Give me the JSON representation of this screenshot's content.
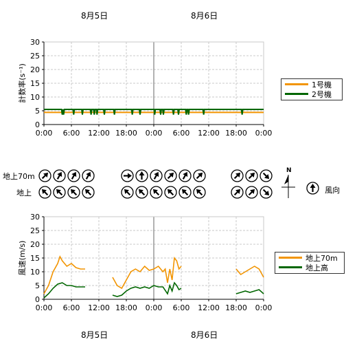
{
  "colors": {
    "unit1": "#f29400",
    "unit2": "#006600",
    "grid": "#c8c8c8",
    "axis": "#000000"
  },
  "dates_top": [
    "8月5日",
    "8月6日"
  ],
  "dates_bottom": [
    "8月5日",
    "8月6日"
  ],
  "chart_data": [
    {
      "type": "line",
      "ylabel": "計数率(s⁻¹)",
      "ylim": [
        0,
        30
      ],
      "yticks": [
        "0",
        "5",
        "10",
        "15",
        "20",
        "25",
        "30"
      ],
      "xticks": [
        "0:00",
        "6:00",
        "12:00",
        "18:00",
        "0:00",
        "6:00",
        "12:00",
        "18:00",
        "0:00"
      ],
      "x_hours": [
        0,
        48
      ],
      "grid": true,
      "legend_position": "right",
      "series": [
        {
          "name": "1号機",
          "color": "#f29400",
          "values": [
            [
              0,
              4.4
            ],
            [
              48,
              4.4
            ]
          ]
        },
        {
          "name": "2号機",
          "color": "#006600",
          "values": [
            [
              0,
              5.5
            ],
            [
              48,
              5.5
            ]
          ],
          "dips_hours": [
            4.0,
            4.3,
            6.5,
            8.4,
            10.3,
            11.0,
            11.6,
            13.2,
            15.4,
            19.3,
            21.0,
            24.2,
            25.5,
            26.1,
            28.3,
            29.4,
            31.1,
            31.6,
            34.9,
            43.3
          ],
          "dip_value": 3.6
        }
      ]
    },
    {
      "type": "line",
      "ylabel": "風速(m/s)",
      "ylim": [
        0,
        30
      ],
      "yticks": [
        "0",
        "5",
        "10",
        "15",
        "20",
        "25",
        "30"
      ],
      "xticks": [
        "0:00",
        "6:00",
        "12:00",
        "18:00",
        "0:00",
        "6:00",
        "12:00",
        "18:00",
        "0:00"
      ],
      "x_hours": [
        0,
        48
      ],
      "grid": true,
      "legend_position": "right",
      "series": [
        {
          "name": "地上70m",
          "color": "#f29400",
          "segments": [
            [
              [
                0,
                2
              ],
              [
                1,
                5
              ],
              [
                2,
                10
              ],
              [
                3,
                13
              ],
              [
                3.5,
                15.5
              ],
              [
                4,
                14
              ],
              [
                5,
                12
              ],
              [
                6,
                13
              ],
              [
                7,
                11.5
              ],
              [
                8,
                11
              ],
              [
                9,
                11
              ]
            ],
            [
              [
                15,
                8
              ],
              [
                16,
                5
              ],
              [
                17,
                4
              ],
              [
                18,
                7
              ],
              [
                19,
                10
              ],
              [
                20,
                11
              ],
              [
                21,
                10
              ],
              [
                22,
                12
              ],
              [
                23,
                10.5
              ],
              [
                24,
                11
              ],
              [
                25,
                12
              ],
              [
                26,
                10
              ],
              [
                26.5,
                11
              ],
              [
                27,
                6
              ],
              [
                27.5,
                11
              ],
              [
                28,
                7
              ],
              [
                28.5,
                15
              ],
              [
                29,
                14
              ],
              [
                29.5,
                11
              ],
              [
                30,
                12
              ]
            ],
            [
              [
                42,
                11
              ],
              [
                43,
                9
              ],
              [
                44,
                10
              ],
              [
                45,
                11
              ],
              [
                46,
                12
              ],
              [
                47,
                11
              ],
              [
                48,
                8
              ]
            ]
          ]
        },
        {
          "name": "地上高",
          "color": "#006600",
          "segments": [
            [
              [
                0,
                0.5
              ],
              [
                1,
                2
              ],
              [
                2,
                4
              ],
              [
                3,
                5.5
              ],
              [
                4,
                6
              ],
              [
                5,
                5
              ],
              [
                6,
                5
              ],
              [
                7,
                4.5
              ],
              [
                8,
                4.5
              ],
              [
                9,
                4.5
              ]
            ],
            [
              [
                15,
                1.5
              ],
              [
                16,
                1
              ],
              [
                17,
                1.5
              ],
              [
                18,
                3
              ],
              [
                19,
                4
              ],
              [
                20,
                4.5
              ],
              [
                21,
                4
              ],
              [
                22,
                4.5
              ],
              [
                23,
                4
              ],
              [
                24,
                5
              ],
              [
                25,
                4.5
              ],
              [
                26,
                4.5
              ],
              [
                27,
                2
              ],
              [
                27.5,
                5
              ],
              [
                28,
                3
              ],
              [
                28.5,
                6
              ],
              [
                29,
                5
              ],
              [
                29.5,
                3.5
              ],
              [
                30,
                4
              ]
            ],
            [
              [
                42,
                2
              ],
              [
                43,
                2.5
              ],
              [
                44,
                3
              ],
              [
                45,
                2.5
              ],
              [
                46,
                3
              ],
              [
                47,
                3.5
              ],
              [
                48,
                2
              ]
            ]
          ]
        }
      ]
    }
  ],
  "wind": {
    "row_labels": [
      "地上70m",
      "地上"
    ],
    "groups": [
      {
        "row70m": [
          45,
          30,
          30,
          30
        ],
        "row_ground": [
          315,
          315,
          315,
          315
        ]
      },
      {
        "row70m": [
          90,
          0,
          30,
          45,
          30,
          45
        ],
        "row_ground": [
          315,
          315,
          315,
          315,
          315,
          315
        ]
      },
      {
        "row70m": [
          45,
          45,
          135
        ],
        "row_ground": [
          45,
          45,
          135
        ]
      }
    ],
    "legend_label": "風向",
    "north_label": "N"
  }
}
